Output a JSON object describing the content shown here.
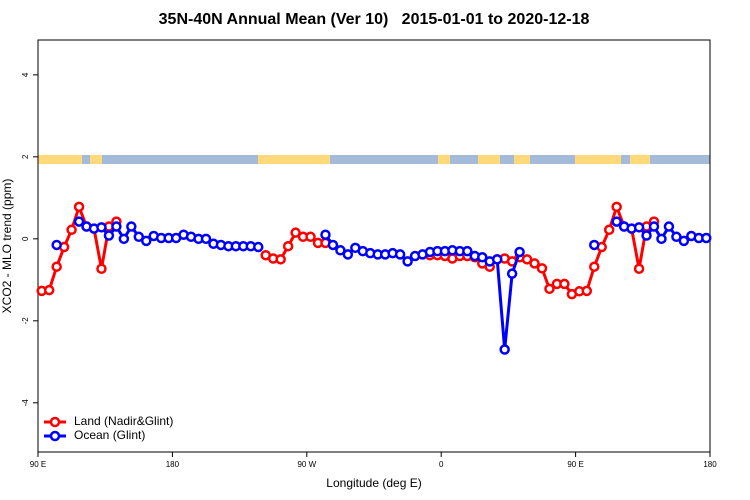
{
  "chart_data": {
    "type": "line",
    "title": "35N-40N Annual Mean (Ver 10)   2015-01-01 to 2020-12-18",
    "x_label": "Longitude (deg E)",
    "y_label": "XCO2 - MLO trend (ppm)",
    "xlim": [
      90,
      540
    ],
    "ylim": [
      -5.2,
      4.85
    ],
    "xticks": [
      {
        "value": 90,
        "label": "90 E"
      },
      180,
      {
        "value": 270,
        "label": "90 W"
      },
      {
        "value": 360,
        "label": "0"
      },
      {
        "value": 450,
        "label": "90 E"
      },
      {
        "value": 540,
        "label": "180"
      }
    ],
    "yticks": [
      -4,
      -2,
      0,
      2,
      4
    ],
    "legend": "bottom-left",
    "series": [
      {
        "name": "Land (Nadir&Glint)",
        "color": "#ff0000",
        "x": [
          92.5,
          97.5,
          102.5,
          107.5,
          112.5,
          117.5,
          122.5,
          127.5,
          132.5,
          137.5,
          142.5,
          null,
          242.5,
          247.5,
          252.5,
          257.5,
          262.5,
          267.5,
          272.5,
          277.5,
          282.5,
          null,
          352.5,
          357.5,
          362.5,
          367.5,
          372.5,
          377.5,
          382.5,
          387.5,
          392.5,
          397.5,
          402.5,
          407.5,
          412.5,
          417.5,
          422.5,
          427.5,
          432.5,
          437.5,
          442.5,
          447.5,
          452.5,
          457.5,
          462.5,
          467.5,
          472.5,
          477.5,
          482.5,
          487.5,
          492.5,
          497.5,
          502.5
        ],
        "values": [
          -1.27,
          -1.25,
          -0.68,
          -0.2,
          0.22,
          0.78,
          0.3,
          0.25,
          -0.73,
          0.3,
          0.42,
          null,
          -0.4,
          -0.48,
          -0.5,
          -0.18,
          0.15,
          0.05,
          0.05,
          -0.1,
          -0.1,
          null,
          -0.4,
          -0.4,
          -0.42,
          -0.48,
          -0.42,
          -0.42,
          -0.45,
          -0.6,
          -0.68,
          -0.5,
          -0.48,
          -0.55,
          -0.45,
          -0.5,
          -0.6,
          -0.72,
          -1.22,
          -1.1,
          -1.1,
          -1.35,
          -1.28,
          -1.27,
          -0.68,
          -0.2,
          0.22,
          0.78,
          0.3,
          0.25,
          -0.73,
          0.3,
          0.42
        ]
      },
      {
        "name": "Ocean (Glint)",
        "color": "#0000ff",
        "x": [
          102.5,
          null,
          117.5,
          122.5,
          127.5,
          132.5,
          137.5,
          142.5,
          147.5,
          152.5,
          157.5,
          162.5,
          167.5,
          172.5,
          177.5,
          182.5,
          187.5,
          192.5,
          197.5,
          202.5,
          207.5,
          212.5,
          217.5,
          222.5,
          227.5,
          232.5,
          237.5,
          null,
          282.5,
          287.5,
          292.5,
          297.5,
          302.5,
          307.5,
          312.5,
          317.5,
          322.5,
          327.5,
          332.5,
          337.5,
          342.5,
          347.5,
          352.5,
          357.5,
          362.5,
          367.5,
          372.5,
          377.5,
          382.5,
          387.5,
          392.5,
          397.5,
          402.5,
          407.5,
          412.5,
          null,
          462.5,
          null,
          477.5,
          482.5,
          487.5,
          492.5,
          497.5,
          502.5,
          507.5,
          512.5,
          517.5,
          522.5,
          527.5,
          532.5,
          537.5
        ],
        "values": [
          -0.15,
          null,
          0.42,
          0.3,
          0.25,
          0.28,
          0.08,
          0.3,
          0.0,
          0.3,
          0.05,
          -0.05,
          0.07,
          0.02,
          0.02,
          0.02,
          0.1,
          0.05,
          0.0,
          0.0,
          -0.12,
          -0.15,
          -0.18,
          -0.18,
          -0.18,
          -0.18,
          -0.2,
          null,
          0.1,
          -0.15,
          -0.28,
          -0.38,
          -0.22,
          -0.3,
          -0.35,
          -0.38,
          -0.38,
          -0.35,
          -0.38,
          -0.55,
          -0.42,
          -0.38,
          -0.32,
          -0.3,
          -0.3,
          -0.28,
          -0.3,
          -0.3,
          -0.42,
          -0.45,
          -0.55,
          -0.5,
          -2.7,
          -0.85,
          -0.32,
          null,
          -0.15,
          null,
          0.42,
          0.3,
          0.25,
          0.28,
          0.08,
          0.3,
          0.0,
          0.3,
          0.05,
          -0.05,
          0.07,
          0.02,
          0.02
        ]
      }
    ]
  }
}
